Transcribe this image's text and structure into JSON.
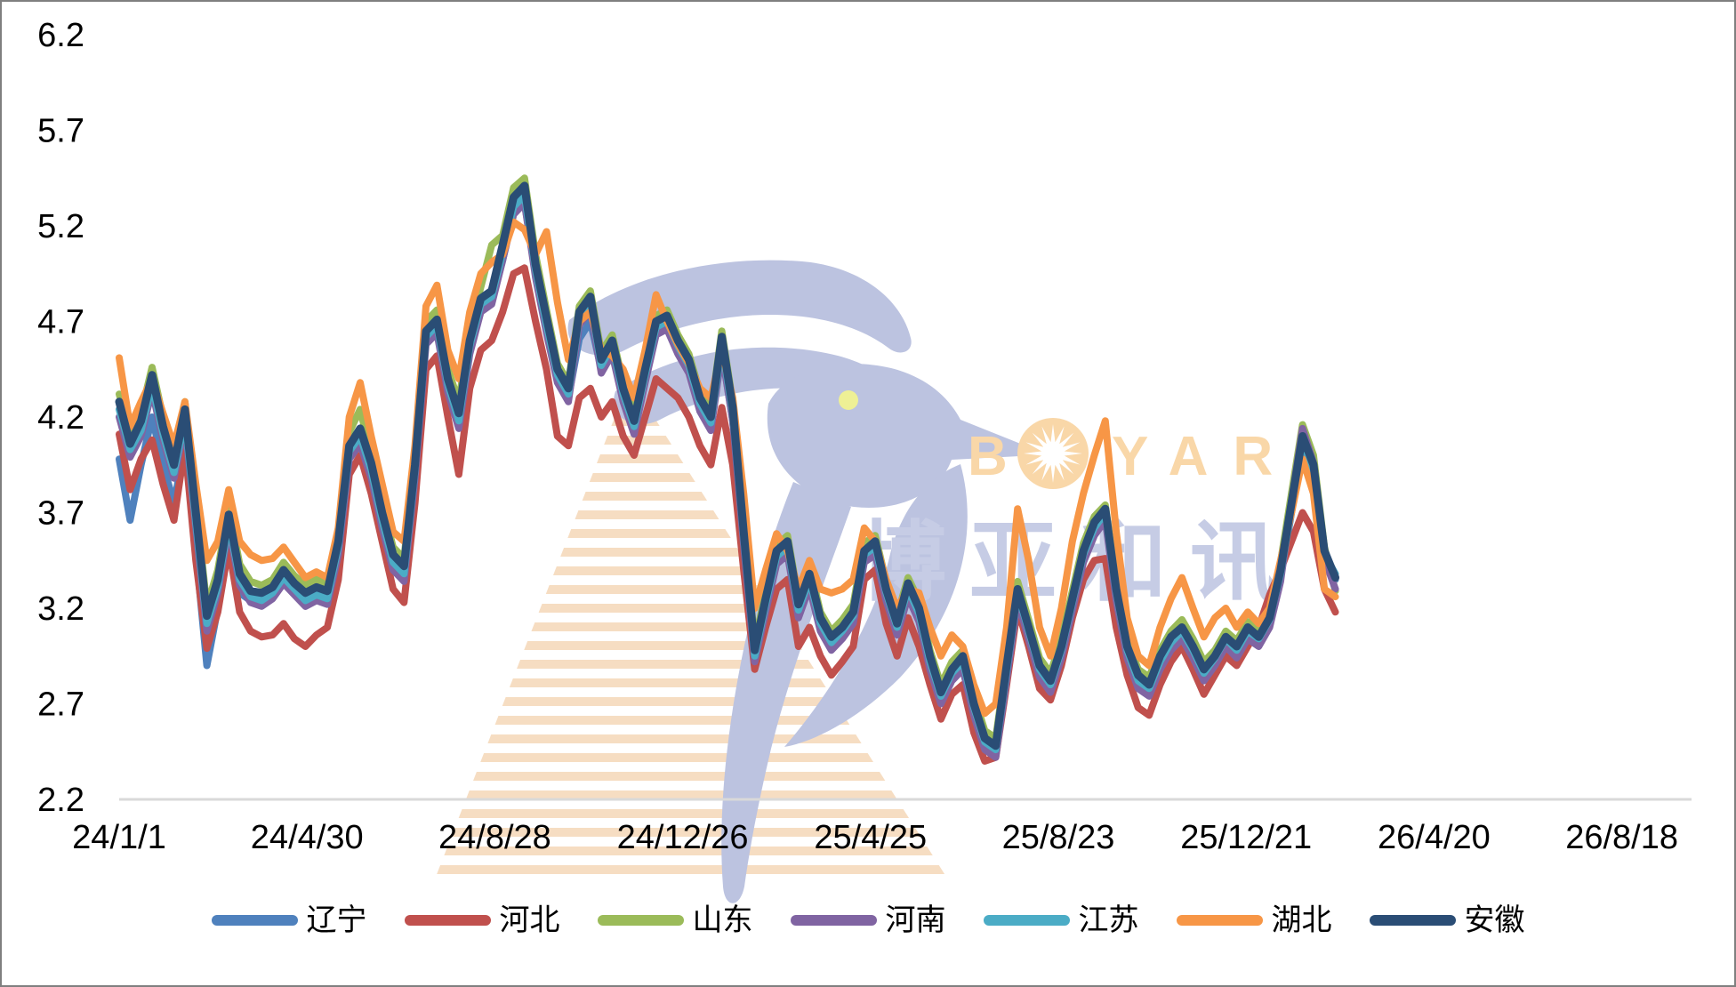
{
  "watermark": {
    "brand": "BOYAR",
    "brand_b": "B",
    "brand_yar": "YAR",
    "brand_cn": "博亚和讯",
    "colors": {
      "dove": "#bcc3e0",
      "dove_eye": "#eef095",
      "brand_text": "#f9d7a8",
      "brand_cn_text": "#c6cce5",
      "stripes": "#f6ddc2"
    }
  },
  "chart_data": {
    "type": "line",
    "title": "",
    "xlabel": "",
    "ylabel": "",
    "grid": false,
    "legend_position": "bottom",
    "ylim": [
      2.2,
      6.2
    ],
    "y_tick_labels": [
      "6.2",
      "5.7",
      "5.2",
      "4.7",
      "4.2",
      "3.7",
      "3.2",
      "2.7",
      "2.2"
    ],
    "y_tick_values": [
      6.2,
      5.7,
      5.2,
      4.7,
      4.2,
      3.7,
      3.2,
      2.7,
      2.2
    ],
    "x_tick_labels": [
      "24/1/1",
      "24/4/30",
      "24/8/28",
      "24/12/26",
      "25/4/25",
      "25/8/23",
      "25/12/21",
      "26/4/20",
      "26/8/18"
    ],
    "x_tick_days": [
      0,
      120,
      240,
      360,
      480,
      600,
      720,
      840,
      960
    ],
    "xlim_days": [
      0,
      1004
    ],
    "sample_step_days": 7,
    "axis_line_color": "#d9d9d9",
    "text_color": "#000000",
    "border_color": "#7f7f7f",
    "series": [
      {
        "name": "辽宁",
        "key": "liaoning",
        "color": "#4F81BD",
        "width": 8,
        "values": [
          3.98,
          3.66,
          3.95,
          4.2,
          3.95,
          3.75,
          4.05,
          3.5,
          2.9,
          3.2,
          3.6,
          3.28,
          3.24,
          3.22,
          3.28,
          3.36,
          3.3,
          3.25,
          3.28,
          3.26,
          3.5,
          4.0,
          4.08,
          3.9,
          3.65,
          3.4,
          3.37,
          3.9,
          4.6,
          4.66,
          4.35,
          4.15,
          4.55,
          4.76,
          4.8,
          5.02,
          5.28,
          5.32,
          4.95,
          4.65,
          4.4,
          4.3,
          4.61,
          4.7,
          4.45,
          4.55,
          4.3,
          4.12,
          4.4,
          4.65,
          4.68,
          4.55,
          4.45,
          4.25,
          4.15,
          4.55,
          4.18,
          3.55,
          2.9,
          3.2,
          3.45,
          3.5,
          3.18,
          3.33,
          3.1,
          3.0,
          3.06,
          3.14,
          3.52,
          3.5,
          3.26,
          3.08,
          3.28,
          3.15,
          2.9,
          2.72,
          2.84,
          2.9,
          2.66,
          2.48,
          2.44,
          2.85,
          3.25,
          3.05,
          2.86,
          2.78,
          2.96,
          3.2,
          3.45,
          3.6,
          3.68,
          3.25,
          2.95,
          2.8,
          2.76,
          2.9,
          3.0,
          3.06,
          2.96,
          2.84,
          2.92,
          3.02,
          2.96,
          3.06,
          3.02,
          3.12,
          3.36,
          3.7,
          4.05,
          3.9,
          3.45,
          3.35
        ]
      },
      {
        "name": "河北",
        "key": "hebei",
        "color": "#C0504D",
        "width": 8,
        "values": [
          4.11,
          3.82,
          3.98,
          4.08,
          3.85,
          3.66,
          4.05,
          3.45,
          2.99,
          3.18,
          3.52,
          3.18,
          3.08,
          3.05,
          3.06,
          3.12,
          3.04,
          3.0,
          3.06,
          3.1,
          3.35,
          3.9,
          4.0,
          3.8,
          3.55,
          3.3,
          3.23,
          3.75,
          4.45,
          4.52,
          4.2,
          3.9,
          4.35,
          4.55,
          4.6,
          4.75,
          4.95,
          4.98,
          4.7,
          4.45,
          4.1,
          4.05,
          4.3,
          4.35,
          4.2,
          4.28,
          4.1,
          4.0,
          4.2,
          4.4,
          4.35,
          4.3,
          4.2,
          4.05,
          3.95,
          4.25,
          3.95,
          3.4,
          2.88,
          3.1,
          3.3,
          3.35,
          3.0,
          3.1,
          2.95,
          2.85,
          2.92,
          3.0,
          3.35,
          3.4,
          3.12,
          2.95,
          3.15,
          3.0,
          2.8,
          2.62,
          2.75,
          2.8,
          2.55,
          2.4,
          2.42,
          2.8,
          3.2,
          3.0,
          2.78,
          2.72,
          2.9,
          3.15,
          3.35,
          3.45,
          3.46,
          3.1,
          2.85,
          2.68,
          2.64,
          2.8,
          2.92,
          3.0,
          2.88,
          2.75,
          2.85,
          2.95,
          2.9,
          3.0,
          3.1,
          3.27,
          3.4,
          3.55,
          3.7,
          3.6,
          3.3,
          3.18
        ]
      },
      {
        "name": "山东",
        "key": "shandong",
        "color": "#9BBB59",
        "width": 8,
        "values": [
          4.32,
          4.12,
          4.22,
          4.46,
          4.2,
          4.0,
          4.28,
          3.75,
          3.21,
          3.4,
          3.73,
          3.43,
          3.34,
          3.32,
          3.35,
          3.44,
          3.37,
          3.32,
          3.35,
          3.33,
          3.6,
          4.12,
          4.24,
          4.0,
          3.74,
          3.52,
          3.46,
          4.0,
          4.7,
          4.76,
          4.45,
          4.28,
          4.66,
          4.88,
          5.1,
          5.15,
          5.4,
          5.45,
          5.05,
          4.76,
          4.48,
          4.38,
          4.78,
          4.86,
          4.54,
          4.63,
          4.38,
          4.22,
          4.48,
          4.73,
          4.76,
          4.63,
          4.53,
          4.33,
          4.23,
          4.65,
          4.28,
          3.64,
          3.02,
          3.28,
          3.53,
          3.58,
          3.25,
          3.42,
          3.18,
          3.08,
          3.14,
          3.22,
          3.54,
          3.58,
          3.34,
          3.16,
          3.36,
          3.24,
          2.98,
          2.8,
          2.92,
          2.98,
          2.74,
          2.56,
          2.52,
          2.93,
          3.34,
          3.14,
          2.94,
          2.86,
          3.04,
          3.29,
          3.54,
          3.68,
          3.74,
          3.34,
          3.04,
          2.88,
          2.84,
          2.98,
          3.08,
          3.14,
          3.04,
          2.92,
          2.98,
          3.08,
          3.03,
          3.13,
          3.08,
          3.18,
          3.44,
          3.8,
          4.16,
          4.0,
          3.52,
          3.29
        ]
      },
      {
        "name": "河南",
        "key": "henan",
        "color": "#8064A2",
        "width": 8,
        "values": [
          4.2,
          3.99,
          4.1,
          4.34,
          4.08,
          3.88,
          4.16,
          3.62,
          3.08,
          3.28,
          3.62,
          3.32,
          3.23,
          3.21,
          3.25,
          3.33,
          3.27,
          3.21,
          3.24,
          3.22,
          3.48,
          3.98,
          4.06,
          3.88,
          3.62,
          3.4,
          3.34,
          3.88,
          4.58,
          4.64,
          4.33,
          4.14,
          4.53,
          4.75,
          4.79,
          5.02,
          5.26,
          5.32,
          4.93,
          4.64,
          4.38,
          4.28,
          4.68,
          4.76,
          4.43,
          4.53,
          4.28,
          4.11,
          4.38,
          4.63,
          4.66,
          4.53,
          4.43,
          4.23,
          4.13,
          4.54,
          4.18,
          3.53,
          2.92,
          3.18,
          3.43,
          3.48,
          3.15,
          3.31,
          3.08,
          2.98,
          3.04,
          3.12,
          3.44,
          3.48,
          3.24,
          3.06,
          3.26,
          3.13,
          2.88,
          2.7,
          2.82,
          2.88,
          2.64,
          2.46,
          2.42,
          2.83,
          3.24,
          3.04,
          2.84,
          2.76,
          2.94,
          3.19,
          3.44,
          3.58,
          3.66,
          3.24,
          2.94,
          2.78,
          2.74,
          2.88,
          2.98,
          3.04,
          2.94,
          2.82,
          2.9,
          3.0,
          2.94,
          3.04,
          3.0,
          3.1,
          3.34,
          3.76,
          4.14,
          3.96,
          3.46,
          3.3
        ]
      },
      {
        "name": "江苏",
        "key": "jiangsu",
        "color": "#4BACC6",
        "width": 8,
        "values": [
          4.24,
          4.03,
          4.13,
          4.37,
          4.11,
          3.91,
          4.19,
          3.65,
          3.12,
          3.31,
          3.65,
          3.35,
          3.26,
          3.24,
          3.28,
          3.36,
          3.3,
          3.24,
          3.27,
          3.25,
          3.52,
          4.02,
          4.1,
          3.92,
          3.66,
          3.44,
          3.38,
          3.92,
          4.62,
          4.68,
          4.37,
          4.18,
          4.57,
          4.79,
          4.83,
          5.06,
          5.3,
          5.36,
          4.97,
          4.68,
          4.42,
          4.32,
          4.72,
          4.8,
          4.47,
          4.57,
          4.32,
          4.15,
          4.42,
          4.67,
          4.7,
          4.57,
          4.47,
          4.27,
          4.17,
          4.58,
          4.22,
          3.57,
          2.95,
          3.22,
          3.47,
          3.52,
          3.19,
          3.35,
          3.12,
          3.02,
          3.08,
          3.16,
          3.48,
          3.52,
          3.28,
          3.1,
          3.3,
          3.17,
          2.92,
          2.74,
          2.86,
          2.92,
          2.68,
          2.5,
          2.46,
          2.87,
          3.28,
          3.08,
          2.88,
          2.8,
          2.98,
          3.23,
          3.48,
          3.62,
          3.7,
          3.28,
          2.98,
          2.82,
          2.78,
          2.92,
          3.02,
          3.08,
          2.98,
          2.86,
          2.94,
          3.04,
          2.98,
          3.08,
          3.04,
          3.14,
          3.38,
          3.72,
          4.08,
          3.92,
          3.48,
          3.38
        ]
      },
      {
        "name": "湖北",
        "key": "hubei",
        "color": "#F79646",
        "width": 8,
        "values": [
          4.51,
          4.15,
          4.28,
          4.4,
          4.22,
          4.05,
          4.28,
          3.85,
          3.45,
          3.55,
          3.82,
          3.55,
          3.48,
          3.45,
          3.46,
          3.52,
          3.44,
          3.36,
          3.39,
          3.36,
          3.62,
          4.2,
          4.38,
          4.1,
          3.85,
          3.6,
          3.55,
          4.05,
          4.78,
          4.89,
          4.55,
          4.4,
          4.75,
          4.95,
          5.01,
          5.05,
          5.22,
          5.18,
          5.05,
          5.17,
          4.8,
          4.5,
          4.7,
          4.75,
          4.55,
          4.52,
          4.45,
          4.3,
          4.55,
          4.84,
          4.7,
          4.58,
          4.48,
          4.35,
          4.3,
          4.55,
          4.3,
          3.8,
          3.2,
          3.4,
          3.59,
          3.5,
          3.3,
          3.45,
          3.3,
          3.28,
          3.3,
          3.35,
          3.62,
          3.55,
          3.35,
          3.2,
          3.3,
          3.28,
          3.1,
          2.95,
          3.06,
          3.0,
          2.8,
          2.65,
          2.7,
          3.1,
          3.72,
          3.45,
          3.1,
          2.95,
          3.2,
          3.55,
          3.8,
          4.0,
          4.18,
          3.6,
          3.15,
          2.95,
          2.9,
          3.1,
          3.25,
          3.36,
          3.2,
          3.05,
          3.15,
          3.2,
          3.1,
          3.18,
          3.12,
          3.2,
          3.45,
          3.7,
          3.98,
          3.8,
          3.3,
          3.26
        ]
      },
      {
        "name": "安徽",
        "key": "anhui",
        "color": "#2A4D75",
        "width": 9,
        "values": [
          4.28,
          4.06,
          4.18,
          4.42,
          4.15,
          3.95,
          4.24,
          3.7,
          3.16,
          3.35,
          3.69,
          3.38,
          3.29,
          3.28,
          3.31,
          3.4,
          3.33,
          3.28,
          3.31,
          3.29,
          3.55,
          4.05,
          4.14,
          3.96,
          3.7,
          3.48,
          3.42,
          3.95,
          4.65,
          4.71,
          4.4,
          4.22,
          4.6,
          4.82,
          4.86,
          5.1,
          5.35,
          5.41,
          5.0,
          4.72,
          4.45,
          4.35,
          4.75,
          4.83,
          4.5,
          4.6,
          4.35,
          4.18,
          4.45,
          4.7,
          4.73,
          4.6,
          4.5,
          4.3,
          4.2,
          4.62,
          4.25,
          3.6,
          2.98,
          3.25,
          3.5,
          3.55,
          3.22,
          3.38,
          3.15,
          3.05,
          3.1,
          3.18,
          3.5,
          3.55,
          3.3,
          3.12,
          3.33,
          3.2,
          2.95,
          2.76,
          2.88,
          2.95,
          2.7,
          2.52,
          2.48,
          2.9,
          3.3,
          3.1,
          2.9,
          2.82,
          3.0,
          3.25,
          3.5,
          3.65,
          3.72,
          3.3,
          3.0,
          2.85,
          2.8,
          2.95,
          3.05,
          3.1,
          3.0,
          2.88,
          2.95,
          3.05,
          3.0,
          3.1,
          3.05,
          3.15,
          3.4,
          3.75,
          4.1,
          3.95,
          3.5,
          3.36
        ]
      }
    ]
  }
}
